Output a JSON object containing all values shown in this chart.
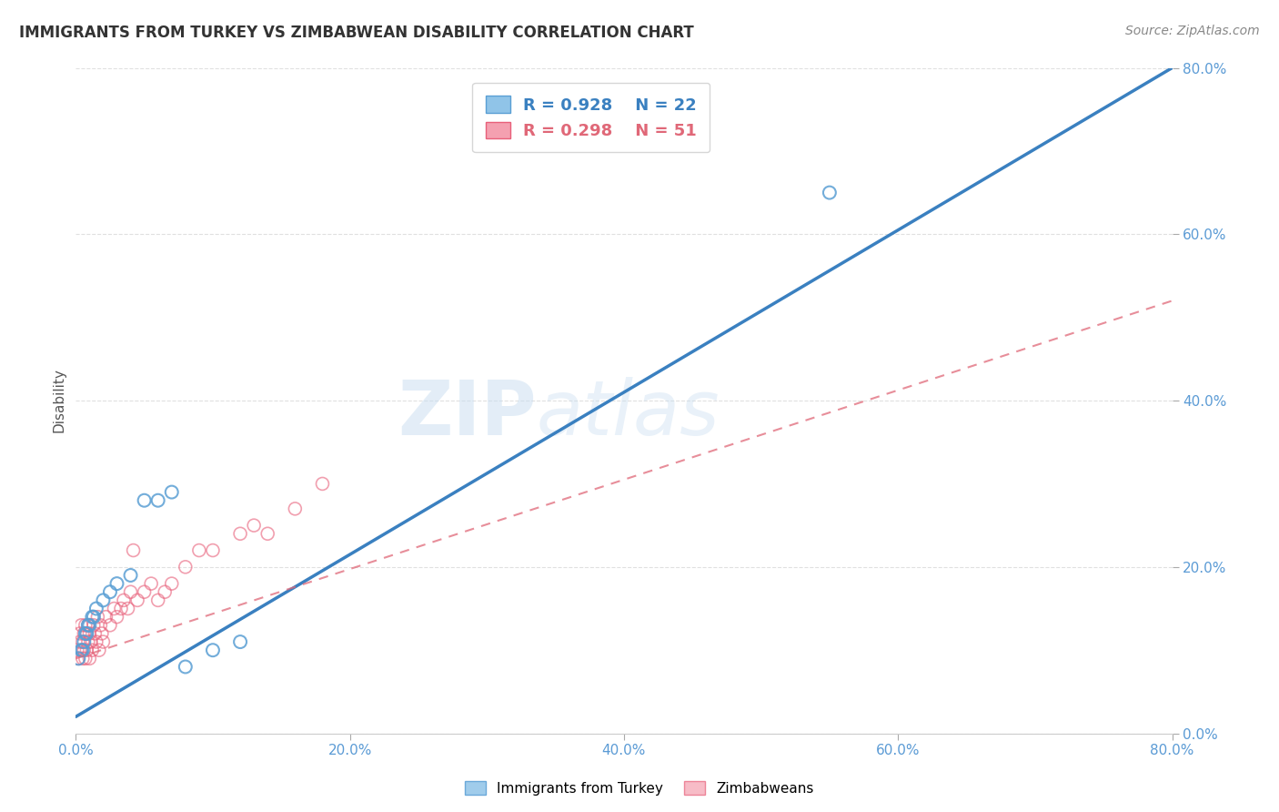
{
  "title": "IMMIGRANTS FROM TURKEY VS ZIMBABWEAN DISABILITY CORRELATION CHART",
  "source": "Source: ZipAtlas.com",
  "ylabel": "Disability",
  "r_blue": 0.928,
  "n_blue": 22,
  "r_pink": 0.298,
  "n_pink": 51,
  "blue_scatter_color": "#90c4e8",
  "blue_edge_color": "#5a9fd4",
  "pink_scatter_color": "#f4a0b0",
  "pink_edge_color": "#e8607a",
  "blue_line_color": "#3a80c0",
  "pink_line_color": "#e06878",
  "watermark_color": "#c8ddf0",
  "axis_color": "#5b9bd5",
  "grid_color": "#cccccc",
  "xlim": [
    0.0,
    0.8
  ],
  "ylim": [
    0.0,
    0.8
  ],
  "tick_labels": [
    "0.0%",
    "20.0%",
    "40.0%",
    "60.0%",
    "80.0%"
  ],
  "tick_values": [
    0.0,
    0.2,
    0.4,
    0.6,
    0.8
  ],
  "blue_scatter_x": [
    0.002,
    0.004,
    0.005,
    0.006,
    0.007,
    0.008,
    0.009,
    0.01,
    0.012,
    0.013,
    0.015,
    0.02,
    0.025,
    0.03,
    0.04,
    0.05,
    0.06,
    0.07,
    0.08,
    0.1,
    0.12,
    0.55
  ],
  "blue_scatter_y": [
    0.09,
    0.1,
    0.1,
    0.11,
    0.12,
    0.12,
    0.13,
    0.13,
    0.14,
    0.14,
    0.15,
    0.16,
    0.17,
    0.18,
    0.19,
    0.28,
    0.28,
    0.29,
    0.08,
    0.1,
    0.11,
    0.65
  ],
  "pink_scatter_x": [
    0.001,
    0.002,
    0.003,
    0.003,
    0.004,
    0.004,
    0.005,
    0.005,
    0.006,
    0.006,
    0.007,
    0.007,
    0.008,
    0.008,
    0.009,
    0.009,
    0.01,
    0.01,
    0.011,
    0.012,
    0.013,
    0.014,
    0.015,
    0.016,
    0.017,
    0.018,
    0.019,
    0.02,
    0.022,
    0.025,
    0.028,
    0.03,
    0.033,
    0.035,
    0.038,
    0.04,
    0.042,
    0.045,
    0.05,
    0.055,
    0.06,
    0.065,
    0.07,
    0.08,
    0.09,
    0.1,
    0.12,
    0.13,
    0.14,
    0.16,
    0.18
  ],
  "pink_scatter_y": [
    0.1,
    0.09,
    0.11,
    0.12,
    0.1,
    0.13,
    0.09,
    0.11,
    0.1,
    0.12,
    0.09,
    0.13,
    0.1,
    0.12,
    0.11,
    0.13,
    0.09,
    0.12,
    0.11,
    0.1,
    0.13,
    0.12,
    0.11,
    0.14,
    0.1,
    0.13,
    0.12,
    0.11,
    0.14,
    0.13,
    0.15,
    0.14,
    0.15,
    0.16,
    0.15,
    0.17,
    0.22,
    0.16,
    0.17,
    0.18,
    0.16,
    0.17,
    0.18,
    0.2,
    0.22,
    0.22,
    0.24,
    0.25,
    0.24,
    0.27,
    0.3
  ],
  "blue_trend_x0": 0.0,
  "blue_trend_y0": 0.02,
  "blue_trend_x1": 0.8,
  "blue_trend_y1": 0.8,
  "pink_trend_x0": 0.0,
  "pink_trend_y0": 0.09,
  "pink_trend_x1": 0.8,
  "pink_trend_y1": 0.52,
  "legend_box_color": "#ffffff",
  "legend_border_color": "#cccccc",
  "bottom_legend_blue": "Immigrants from Turkey",
  "bottom_legend_pink": "Zimbabweans"
}
